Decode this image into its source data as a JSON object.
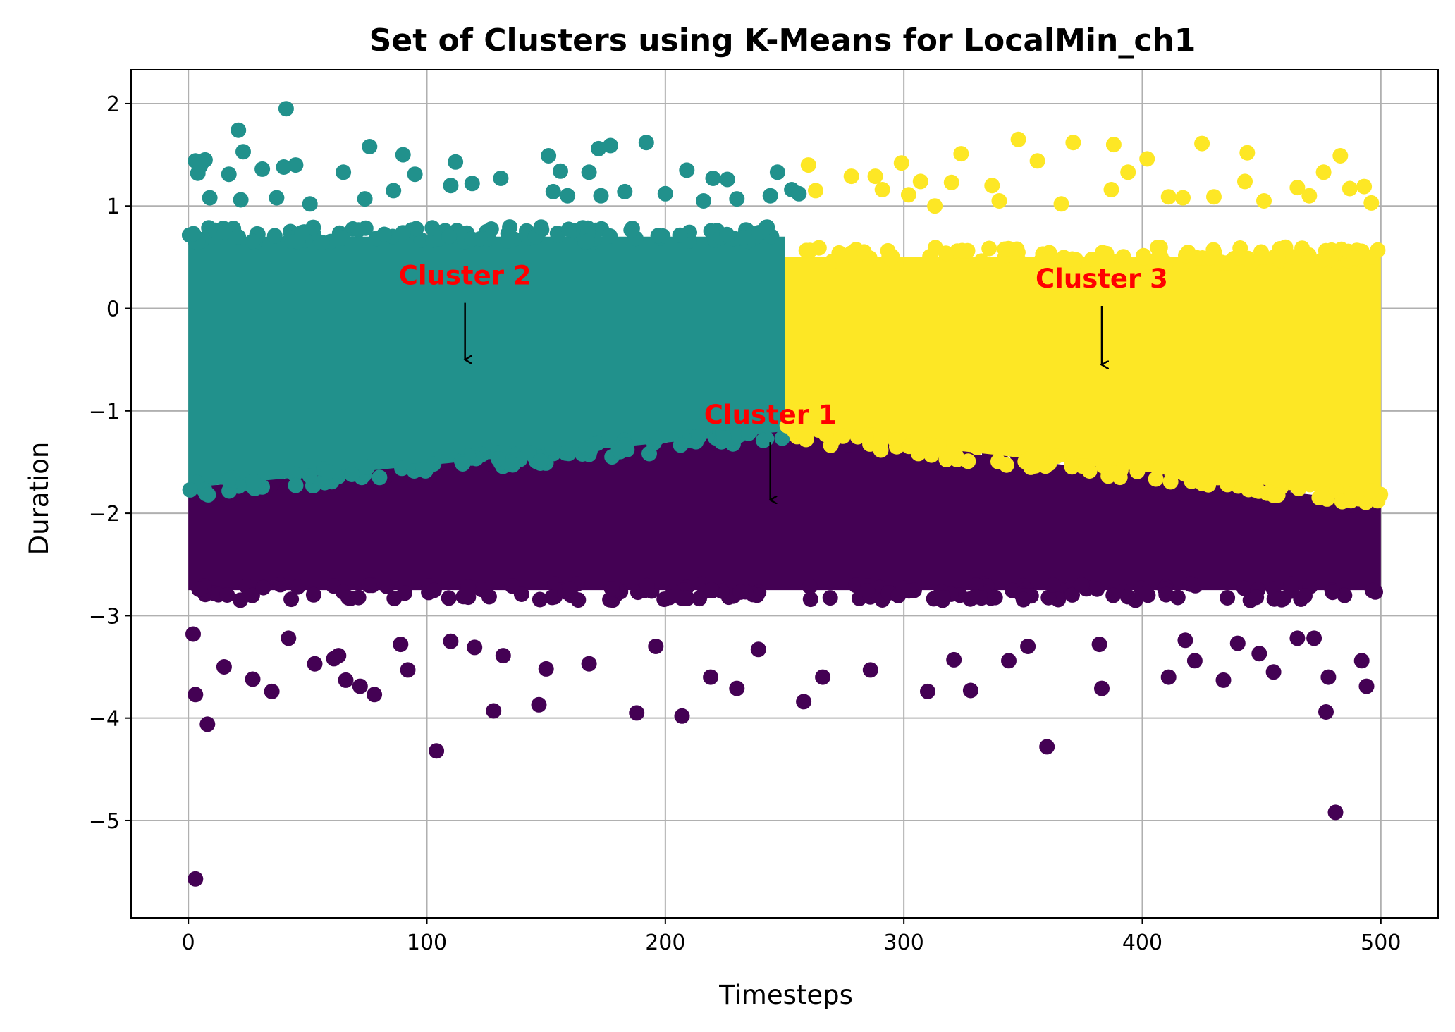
{
  "chart_data": {
    "type": "scatter",
    "title": "Set of Clusters using K-Means for LocalMin_ch1",
    "xlabel": "Timesteps",
    "ylabel": "Duration",
    "xlim": [
      -24,
      524
    ],
    "ylim": [
      -5.95,
      2.33
    ],
    "x_ticks": [
      0,
      100,
      200,
      300,
      400,
      500
    ],
    "y_ticks": [
      2,
      1,
      0,
      -1,
      -2,
      -3,
      -4,
      -5
    ],
    "x_tick_labels": [
      "0",
      "100",
      "200",
      "300",
      "400",
      "500"
    ],
    "y_tick_labels": [
      "2",
      "1",
      "0",
      "−1",
      "−2",
      "−3",
      "−4",
      "−5"
    ],
    "grid": true,
    "legend": "none",
    "colors": {
      "cluster_1": "#440154",
      "cluster_2": "#21918c",
      "cluster_3": "#fde725",
      "annotation_text": "#ff0000",
      "arrow": "#000000"
    },
    "series": [
      {
        "color": "#440154",
        "regions": [
          {
            "x": [
              0,
              500
            ],
            "y_low": -2.75,
            "y_high_start": -1.75,
            "y_high_mid": -1.2,
            "y_high_end": -1.9
          }
        ],
        "outliers": [
          [
            3,
            -5.57
          ],
          [
            481,
            -4.92
          ],
          [
            104,
            -4.32
          ],
          [
            360,
            -4.28
          ],
          [
            8,
            -4.06
          ],
          [
            207,
            -3.98
          ],
          [
            128,
            -3.93
          ],
          [
            477,
            -3.94
          ],
          [
            188,
            -3.95
          ],
          [
            3,
            -3.77
          ],
          [
            147,
            -3.87
          ],
          [
            258,
            -3.84
          ],
          [
            35,
            -3.74
          ],
          [
            78,
            -3.77
          ],
          [
            310,
            -3.74
          ],
          [
            328,
            -3.73
          ],
          [
            383,
            -3.71
          ],
          [
            494,
            -3.69
          ],
          [
            230,
            -3.71
          ],
          [
            266,
            -3.6
          ],
          [
            411,
            -3.6
          ],
          [
            478,
            -3.6
          ],
          [
            434,
            -3.63
          ],
          [
            27,
            -3.62
          ],
          [
            219,
            -3.6
          ],
          [
            53,
            -3.47
          ],
          [
            15,
            -3.5
          ],
          [
            92,
            -3.53
          ],
          [
            150,
            -3.52
          ],
          [
            168,
            -3.47
          ],
          [
            286,
            -3.53
          ],
          [
            321,
            -3.43
          ],
          [
            344,
            -3.44
          ],
          [
            422,
            -3.44
          ],
          [
            449,
            -3.37
          ],
          [
            455,
            -3.55
          ],
          [
            492,
            -3.44
          ],
          [
            2,
            -3.18
          ],
          [
            42,
            -3.22
          ],
          [
            110,
            -3.25
          ],
          [
            196,
            -3.3
          ],
          [
            239,
            -3.33
          ],
          [
            382,
            -3.28
          ],
          [
            440,
            -3.27
          ],
          [
            418,
            -3.24
          ],
          [
            89,
            -3.28
          ],
          [
            61,
            -3.42
          ],
          [
            63,
            -3.39
          ],
          [
            72,
            -3.69
          ],
          [
            66,
            -3.63
          ],
          [
            132,
            -3.39
          ],
          [
            352,
            -3.3
          ],
          [
            472,
            -3.22
          ],
          [
            465,
            -3.22
          ],
          [
            120,
            -3.31
          ]
        ]
      },
      {
        "color": "#21918c",
        "regions": [
          {
            "x": [
              0,
              250
            ],
            "y_low_start": -1.75,
            "y_low_end": -1.2,
            "y_high": 0.7
          }
        ],
        "outliers": [
          [
            41,
            1.95
          ],
          [
            21,
            1.74
          ],
          [
            192,
            1.62
          ],
          [
            177,
            1.59
          ],
          [
            76,
            1.58
          ],
          [
            23,
            1.53
          ],
          [
            151,
            1.49
          ],
          [
            90,
            1.5
          ],
          [
            172,
            1.56
          ],
          [
            112,
            1.43
          ],
          [
            7,
            1.45
          ],
          [
            3,
            1.44
          ],
          [
            5,
            1.39
          ],
          [
            40,
            1.38
          ],
          [
            45,
            1.4
          ],
          [
            31,
            1.36
          ],
          [
            17,
            1.31
          ],
          [
            65,
            1.33
          ],
          [
            95,
            1.31
          ],
          [
            156,
            1.34
          ],
          [
            168,
            1.33
          ],
          [
            209,
            1.35
          ],
          [
            131,
            1.27
          ],
          [
            220,
            1.27
          ],
          [
            226,
            1.26
          ],
          [
            247,
            1.33
          ],
          [
            4,
            1.32
          ],
          [
            110,
            1.2
          ],
          [
            119,
            1.22
          ],
          [
            86,
            1.15
          ],
          [
            153,
            1.14
          ],
          [
            22,
            1.06
          ],
          [
            9,
            1.08
          ],
          [
            37,
            1.08
          ],
          [
            51,
            1.02
          ],
          [
            74,
            1.07
          ],
          [
            159,
            1.1
          ],
          [
            173,
            1.1
          ],
          [
            200,
            1.12
          ],
          [
            216,
            1.05
          ],
          [
            230,
            1.07
          ],
          [
            244,
            1.1
          ],
          [
            253,
            1.16
          ],
          [
            256,
            1.12
          ],
          [
            183,
            1.14
          ]
        ]
      },
      {
        "color": "#fde725",
        "regions": [
          {
            "x": [
              250,
              500
            ],
            "y_low_start": -1.2,
            "y_low_end": -1.85,
            "y_high": 0.5
          }
        ],
        "outliers": [
          [
            348,
            1.65
          ],
          [
            371,
            1.62
          ],
          [
            425,
            1.61
          ],
          [
            388,
            1.6
          ],
          [
            324,
            1.51
          ],
          [
            444,
            1.52
          ],
          [
            483,
            1.49
          ],
          [
            402,
            1.46
          ],
          [
            356,
            1.44
          ],
          [
            299,
            1.42
          ],
          [
            260,
            1.4
          ],
          [
            476,
            1.33
          ],
          [
            394,
            1.33
          ],
          [
            278,
            1.29
          ],
          [
            288,
            1.29
          ],
          [
            307,
            1.24
          ],
          [
            320,
            1.23
          ],
          [
            337,
            1.2
          ],
          [
            291,
            1.16
          ],
          [
            302,
            1.11
          ],
          [
            443,
            1.24
          ],
          [
            487,
            1.17
          ],
          [
            493,
            1.19
          ],
          [
            387,
            1.16
          ],
          [
            411,
            1.09
          ],
          [
            417,
            1.08
          ],
          [
            465,
            1.18
          ],
          [
            470,
            1.1
          ],
          [
            496,
            1.03
          ],
          [
            263,
            1.15
          ],
          [
            430,
            1.09
          ],
          [
            340,
            1.05
          ],
          [
            366,
            1.02
          ],
          [
            451,
            1.05
          ],
          [
            313,
            1.0
          ]
        ]
      }
    ],
    "annotations": [
      {
        "text": "Cluster 2",
        "text_xy": [
          116,
          0.33
        ],
        "arrow_to": [
          116,
          -0.5
        ]
      },
      {
        "text": "Cluster 1",
        "text_xy": [
          244,
          -1.03
        ],
        "arrow_to": [
          244,
          -1.87
        ]
      },
      {
        "text": "Cluster 3",
        "text_xy": [
          383,
          0.3
        ],
        "arrow_to": [
          383,
          -0.55
        ]
      }
    ]
  }
}
